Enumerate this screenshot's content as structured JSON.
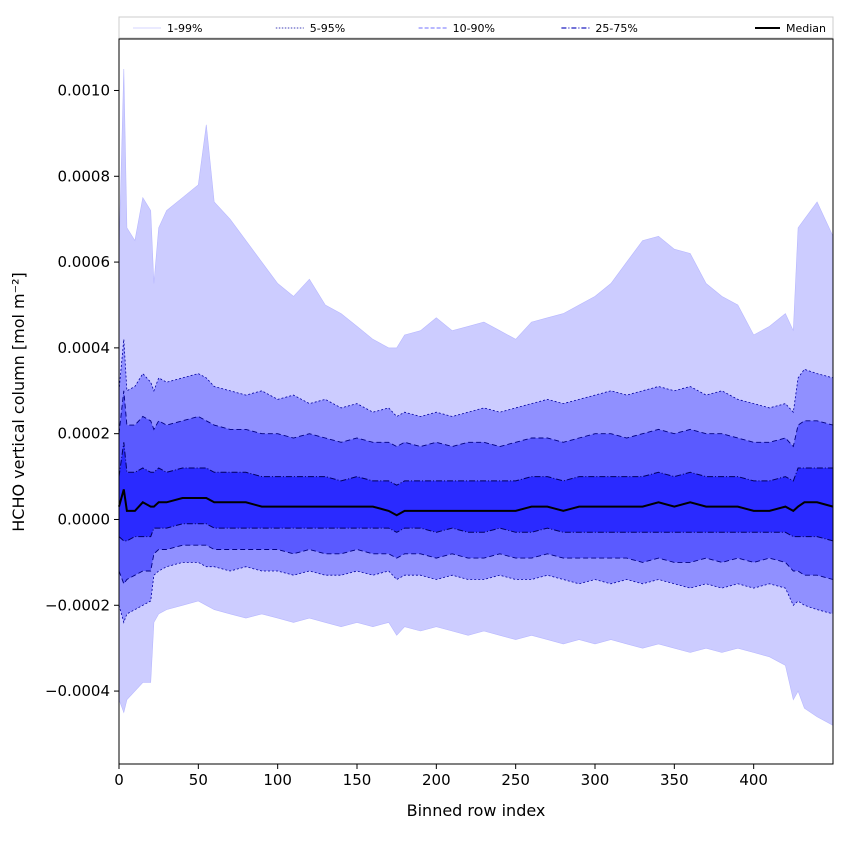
{
  "chart_data": {
    "type": "area",
    "title": "",
    "xlabel": "Binned row index",
    "ylabel": "HCHO vertical column [mol m⁻²]",
    "xlim": [
      0,
      450
    ],
    "ylim": [
      -0.00057,
      0.00112
    ],
    "x_ticks": [
      0,
      50,
      100,
      150,
      200,
      250,
      300,
      350,
      400
    ],
    "y_ticks": [
      -0.0004,
      -0.0002,
      0.0,
      0.0002,
      0.0004,
      0.0006,
      0.0008,
      0.001
    ],
    "y_tick_labels": [
      "−0.0004",
      "−0.0002",
      "0.0000",
      "0.0002",
      "0.0004",
      "0.0006",
      "0.0008",
      "0.0010"
    ],
    "grid": false,
    "legend_placement": "top, above plot, single row",
    "legend": [
      {
        "label": "1-99%",
        "style": "solid-thin",
        "color": "#c8c8ff"
      },
      {
        "label": "5-95%",
        "style": "dotted",
        "color": "#0000a0"
      },
      {
        "label": "10-90%",
        "style": "dashed",
        "color": "#7070ff"
      },
      {
        "label": "25-75%",
        "style": "dashdot",
        "color": "#2020c0"
      },
      {
        "label": "Median",
        "style": "solid-thick",
        "color": "#000000"
      }
    ],
    "colors": {
      "band_1_99": "#ccccff",
      "band_5_95": "#9090ff",
      "band_10_90": "#5a5aff",
      "band_25_75": "#2a2aff",
      "median": "#000000"
    },
    "x": [
      0,
      3,
      5,
      10,
      15,
      20,
      22,
      25,
      30,
      40,
      50,
      55,
      60,
      70,
      80,
      90,
      100,
      110,
      120,
      130,
      140,
      150,
      160,
      170,
      175,
      180,
      190,
      200,
      210,
      220,
      230,
      240,
      250,
      260,
      270,
      280,
      290,
      300,
      310,
      320,
      330,
      340,
      350,
      360,
      370,
      380,
      390,
      400,
      410,
      420,
      425,
      428,
      432,
      440,
      450
    ],
    "series": [
      {
        "name": "1-99%",
        "upper": [
          0.00062,
          0.00105,
          0.00068,
          0.00065,
          0.00075,
          0.00072,
          0.00055,
          0.00068,
          0.00072,
          0.00075,
          0.00078,
          0.00092,
          0.00074,
          0.0007,
          0.00065,
          0.0006,
          0.00055,
          0.00052,
          0.00056,
          0.0005,
          0.00048,
          0.00045,
          0.00042,
          0.0004,
          0.0004,
          0.00043,
          0.00044,
          0.00047,
          0.00044,
          0.00045,
          0.00046,
          0.00044,
          0.00042,
          0.00046,
          0.00047,
          0.00048,
          0.0005,
          0.00052,
          0.00055,
          0.0006,
          0.00065,
          0.00066,
          0.00063,
          0.00062,
          0.00055,
          0.00052,
          0.0005,
          0.00043,
          0.00045,
          0.00048,
          0.00044,
          0.00068,
          0.0007,
          0.00074,
          0.00066
        ],
        "lower": [
          -0.00042,
          -0.00045,
          -0.00042,
          -0.0004,
          -0.00038,
          -0.00038,
          -0.00024,
          -0.00022,
          -0.00021,
          -0.0002,
          -0.00019,
          -0.0002,
          -0.00021,
          -0.00022,
          -0.00023,
          -0.00022,
          -0.00023,
          -0.00024,
          -0.00023,
          -0.00024,
          -0.00025,
          -0.00024,
          -0.00025,
          -0.00024,
          -0.00027,
          -0.00025,
          -0.00026,
          -0.00025,
          -0.00026,
          -0.00027,
          -0.00026,
          -0.00027,
          -0.00028,
          -0.00027,
          -0.00028,
          -0.00029,
          -0.00028,
          -0.00029,
          -0.00028,
          -0.00029,
          -0.0003,
          -0.00029,
          -0.0003,
          -0.00031,
          -0.0003,
          -0.00031,
          -0.0003,
          -0.00031,
          -0.00032,
          -0.00034,
          -0.00042,
          -0.0004,
          -0.00044,
          -0.00046,
          -0.00048
        ]
      },
      {
        "name": "5-95%",
        "upper": [
          0.0003,
          0.00042,
          0.0003,
          0.00031,
          0.00034,
          0.00032,
          0.0003,
          0.00033,
          0.00032,
          0.00033,
          0.00034,
          0.00033,
          0.00031,
          0.0003,
          0.00029,
          0.0003,
          0.00028,
          0.00029,
          0.00027,
          0.00028,
          0.00026,
          0.00027,
          0.00025,
          0.00026,
          0.00024,
          0.00025,
          0.00024,
          0.00025,
          0.00024,
          0.00025,
          0.00026,
          0.00025,
          0.00026,
          0.00027,
          0.00028,
          0.00027,
          0.00028,
          0.00029,
          0.0003,
          0.00029,
          0.0003,
          0.00031,
          0.0003,
          0.00031,
          0.00029,
          0.0003,
          0.00028,
          0.00027,
          0.00026,
          0.00027,
          0.00025,
          0.00033,
          0.00035,
          0.00034,
          0.00033
        ],
        "lower": [
          -0.0002,
          -0.00024,
          -0.00022,
          -0.00021,
          -0.0002,
          -0.00019,
          -0.00013,
          -0.00012,
          -0.00011,
          -0.0001,
          -0.0001,
          -0.00011,
          -0.00011,
          -0.00012,
          -0.00011,
          -0.00012,
          -0.00012,
          -0.00013,
          -0.00012,
          -0.00013,
          -0.00013,
          -0.00012,
          -0.00013,
          -0.00012,
          -0.00014,
          -0.00013,
          -0.00013,
          -0.00014,
          -0.00013,
          -0.00014,
          -0.00014,
          -0.00013,
          -0.00014,
          -0.00014,
          -0.00013,
          -0.00014,
          -0.00015,
          -0.00014,
          -0.00015,
          -0.00014,
          -0.00015,
          -0.00014,
          -0.00015,
          -0.00016,
          -0.00015,
          -0.00016,
          -0.00015,
          -0.00016,
          -0.00015,
          -0.00016,
          -0.0002,
          -0.00019,
          -0.0002,
          -0.00021,
          -0.00022
        ]
      },
      {
        "name": "10-90%",
        "upper": [
          0.0002,
          0.0003,
          0.00022,
          0.00022,
          0.00024,
          0.00023,
          0.00021,
          0.00023,
          0.00022,
          0.00023,
          0.00024,
          0.00023,
          0.00022,
          0.00021,
          0.00021,
          0.0002,
          0.0002,
          0.00019,
          0.0002,
          0.00019,
          0.00018,
          0.00019,
          0.00018,
          0.00018,
          0.00017,
          0.00018,
          0.00017,
          0.00018,
          0.00017,
          0.00018,
          0.00018,
          0.00017,
          0.00018,
          0.00019,
          0.00019,
          0.00018,
          0.00019,
          0.0002,
          0.0002,
          0.00019,
          0.0002,
          0.00021,
          0.0002,
          0.00021,
          0.0002,
          0.0002,
          0.00019,
          0.00018,
          0.00018,
          0.00019,
          0.00017,
          0.00022,
          0.00023,
          0.00023,
          0.00022
        ],
        "lower": [
          -0.00012,
          -0.00015,
          -0.00014,
          -0.00013,
          -0.00012,
          -0.00012,
          -8e-05,
          -7e-05,
          -7e-05,
          -6e-05,
          -6e-05,
          -6e-05,
          -7e-05,
          -7e-05,
          -7e-05,
          -7e-05,
          -7e-05,
          -8e-05,
          -7e-05,
          -8e-05,
          -8e-05,
          -7e-05,
          -8e-05,
          -8e-05,
          -9e-05,
          -8e-05,
          -8e-05,
          -9e-05,
          -8e-05,
          -9e-05,
          -9e-05,
          -8e-05,
          -9e-05,
          -9e-05,
          -8e-05,
          -9e-05,
          -9e-05,
          -9e-05,
          -9e-05,
          -9e-05,
          -0.0001,
          -9e-05,
          -0.0001,
          -0.0001,
          -9e-05,
          -0.0001,
          -9e-05,
          -0.0001,
          -9e-05,
          -0.0001,
          -0.00012,
          -0.00012,
          -0.00013,
          -0.00013,
          -0.00014
        ]
      },
      {
        "name": "25-75%",
        "upper": [
          0.0001,
          0.00018,
          0.00011,
          0.00011,
          0.00012,
          0.00011,
          0.00011,
          0.00012,
          0.00011,
          0.00012,
          0.00012,
          0.00012,
          0.00011,
          0.00011,
          0.00011,
          0.0001,
          0.0001,
          0.0001,
          0.0001,
          0.0001,
          9e-05,
          0.0001,
          9e-05,
          9e-05,
          8e-05,
          9e-05,
          9e-05,
          9e-05,
          9e-05,
          9e-05,
          9e-05,
          9e-05,
          9e-05,
          0.0001,
          0.0001,
          9e-05,
          0.0001,
          0.0001,
          0.0001,
          0.0001,
          0.0001,
          0.00011,
          0.0001,
          0.00011,
          0.0001,
          0.0001,
          0.0001,
          9e-05,
          9e-05,
          0.0001,
          9e-05,
          0.00012,
          0.00012,
          0.00012,
          0.00012
        ],
        "lower": [
          -4e-05,
          -5e-05,
          -5e-05,
          -4e-05,
          -4e-05,
          -4e-05,
          -2e-05,
          -2e-05,
          -2e-05,
          -1e-05,
          -1e-05,
          -1e-05,
          -2e-05,
          -2e-05,
          -2e-05,
          -2e-05,
          -2e-05,
          -2e-05,
          -2e-05,
          -2e-05,
          -2e-05,
          -2e-05,
          -2e-05,
          -2e-05,
          -3e-05,
          -2e-05,
          -2e-05,
          -3e-05,
          -2e-05,
          -3e-05,
          -3e-05,
          -2e-05,
          -3e-05,
          -3e-05,
          -2e-05,
          -3e-05,
          -3e-05,
          -3e-05,
          -3e-05,
          -3e-05,
          -3e-05,
          -3e-05,
          -3e-05,
          -3e-05,
          -3e-05,
          -3e-05,
          -3e-05,
          -3e-05,
          -3e-05,
          -3e-05,
          -4e-05,
          -4e-05,
          -4e-05,
          -4e-05,
          -5e-05
        ]
      },
      {
        "name": "Median",
        "values": [
          3e-05,
          7e-05,
          2e-05,
          2e-05,
          4e-05,
          3e-05,
          3e-05,
          4e-05,
          4e-05,
          5e-05,
          5e-05,
          5e-05,
          4e-05,
          4e-05,
          4e-05,
          3e-05,
          3e-05,
          3e-05,
          3e-05,
          3e-05,
          3e-05,
          3e-05,
          3e-05,
          2e-05,
          1e-05,
          2e-05,
          2e-05,
          2e-05,
          2e-05,
          2e-05,
          2e-05,
          2e-05,
          2e-05,
          3e-05,
          3e-05,
          2e-05,
          3e-05,
          3e-05,
          3e-05,
          3e-05,
          3e-05,
          4e-05,
          3e-05,
          4e-05,
          3e-05,
          3e-05,
          3e-05,
          2e-05,
          2e-05,
          3e-05,
          2e-05,
          3e-05,
          4e-05,
          4e-05,
          3e-05
        ]
      }
    ]
  }
}
